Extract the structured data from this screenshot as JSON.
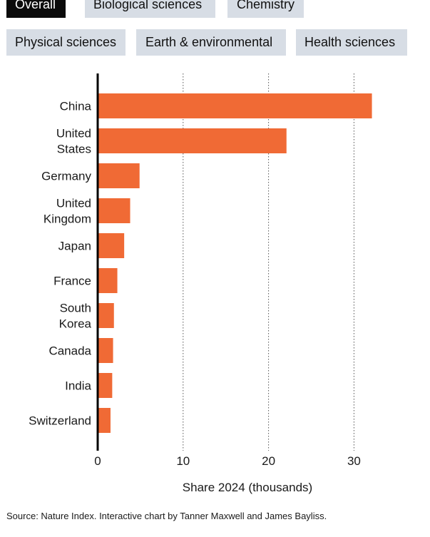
{
  "tabs": {
    "row1": [
      {
        "label": "Overall",
        "active": true
      },
      {
        "label": "Biological sciences",
        "active": false
      },
      {
        "label": "Chemistry",
        "active": false
      }
    ],
    "row2": [
      {
        "label": "Physical sciences",
        "active": false
      },
      {
        "label": "Earth & environmental",
        "active": false
      },
      {
        "label": "Health sciences",
        "active": false
      }
    ]
  },
  "chart_data": {
    "type": "bar",
    "orientation": "horizontal",
    "categories": [
      [
        "China"
      ],
      [
        "United",
        "States"
      ],
      [
        "Germany"
      ],
      [
        "United",
        "Kingdom"
      ],
      [
        "Japan"
      ],
      [
        "France"
      ],
      [
        "South",
        "Korea"
      ],
      [
        "Canada"
      ],
      [
        "India"
      ],
      [
        "Switzerland"
      ]
    ],
    "values": [
      32.1,
      22.1,
      4.9,
      3.8,
      3.1,
      2.3,
      1.9,
      1.8,
      1.7,
      1.5
    ],
    "xlabel": "Share 2024 (thousands)",
    "xticks": [
      0,
      10,
      20,
      30
    ],
    "xlim": [
      0,
      33.5
    ],
    "grid": "vertical-dotted",
    "bar_color": "#f06a35"
  },
  "source": "Source: Nature Index. Interactive chart by Tanner Maxwell and James Bayliss."
}
